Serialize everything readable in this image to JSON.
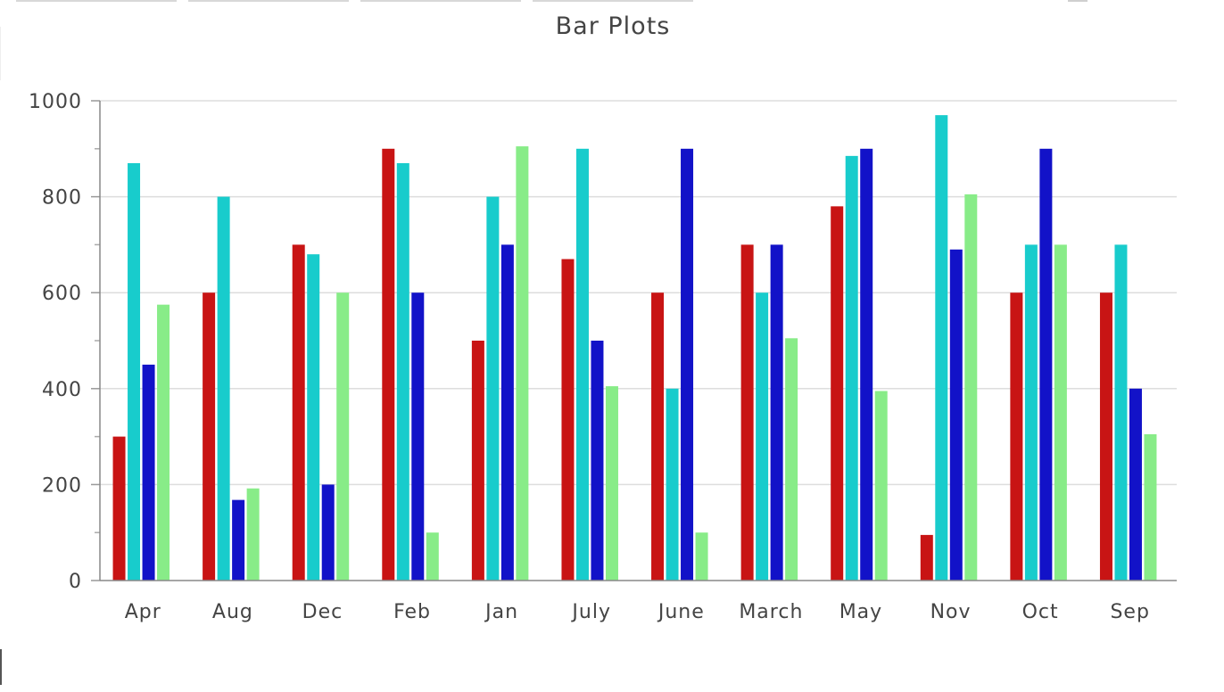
{
  "chart_data": {
    "type": "bar",
    "title": "Bar Plots",
    "xlabel": "",
    "ylabel": "",
    "categories": [
      "Apr",
      "Aug",
      "Dec",
      "Feb",
      "Jan",
      "July",
      "June",
      "March",
      "May",
      "Nov",
      "Oct",
      "Sep"
    ],
    "series": [
      {
        "color": "#c81414",
        "values": [
          300,
          600,
          700,
          900,
          500,
          670,
          600,
          700,
          780,
          95,
          600,
          600
        ]
      },
      {
        "color": "#18cccc",
        "values": [
          870,
          800,
          680,
          870,
          800,
          900,
          400,
          600,
          885,
          970,
          700,
          700
        ]
      },
      {
        "color": "#1212c8",
        "values": [
          450,
          168,
          200,
          600,
          700,
          500,
          900,
          700,
          900,
          690,
          900,
          400
        ]
      },
      {
        "color": "#88ec88",
        "values": [
          575,
          192,
          600,
          100,
          905,
          405,
          100,
          505,
          395,
          805,
          700,
          305
        ]
      }
    ],
    "ylim": [
      0,
      1000
    ],
    "yticks": [
      "0",
      "200",
      "400",
      "600",
      "800",
      "1000"
    ],
    "ytick_values": [
      0,
      200,
      400,
      600,
      800,
      1000
    ],
    "grid": true
  }
}
